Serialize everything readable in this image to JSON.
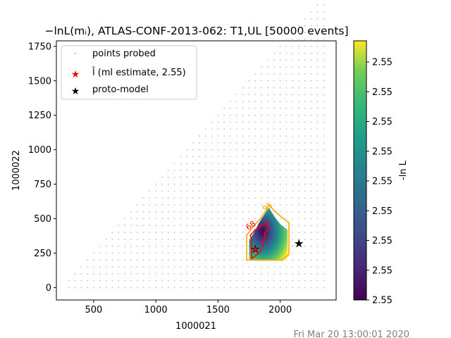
{
  "chart_data": {
    "type": "scatter",
    "title": "−lnL(mᵢ), ATLAS-CONF-2013-062: T1,UL [50000 events]",
    "xlabel": "1000021",
    "ylabel": "1000022",
    "xlim": [
      200,
      2450
    ],
    "ylim": [
      -90,
      1790
    ],
    "xticks": [
      "500",
      "1000",
      "1500",
      "2000"
    ],
    "xtick_values": [
      500,
      1000,
      1500,
      2000
    ],
    "yticks": [
      "0",
      "250",
      "500",
      "750",
      "1000",
      "1250",
      "1500",
      "1750"
    ],
    "ytick_values": [
      0,
      250,
      500,
      750,
      1000,
      1250,
      1500,
      1750
    ],
    "grid": false,
    "legend_position": "top-left",
    "legend": [
      {
        "label": "points probed",
        "marker": "dot",
        "color": "#c0c0c0"
      },
      {
        "label": "l̂ (ml estimate, 2.55)",
        "marker": "star",
        "color": "#ff0000"
      },
      {
        "label": "proto-model",
        "marker": "star",
        "color": "#000000"
      }
    ],
    "probed_grid": {
      "x_start": 300,
      "x_end": 2350,
      "x_step": 50,
      "y_start": 0,
      "y_step": 50,
      "diagonal_y_offset": -225
    },
    "ml_estimate": {
      "x": 1800,
      "y": 280
    },
    "proto_model": {
      "x": 2150,
      "y": 320
    },
    "contour_labels": [
      {
        "text": "95",
        "color": "#ffa500",
        "x": 1910,
        "y": 570
      },
      {
        "text": "68",
        "color": "#ff0000",
        "x": 1775,
        "y": 435
      }
    ],
    "colorbar": {
      "label": "-ln L",
      "ticks": [
        "2.55",
        "2.55",
        "2.55",
        "2.55",
        "2.55",
        "2.55",
        "2.55",
        "2.55",
        "2.55"
      ],
      "colormap": "viridis"
    },
    "heatmap_region": "polygon of likelihood cells around the best fit"
  },
  "footer": {
    "timestamp": "Fri Mar 20 13:00:01 2020"
  },
  "colors": {
    "contour95": "#ffa500",
    "contour68": "#ff0000",
    "probed": "#c0c0c0"
  }
}
